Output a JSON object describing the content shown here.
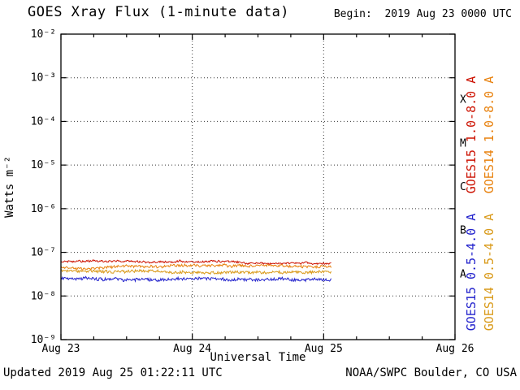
{
  "header": {
    "title": "GOES Xray Flux (1-minute data)",
    "begin_label": "Begin:  2019 Aug 23 0000 UTC"
  },
  "footer": {
    "updated": "Updated 2019 Aug 25 01:22:11 UTC",
    "source": "NOAA/SWPC Boulder, CO USA"
  },
  "chart_data": {
    "type": "line",
    "title": "GOES Xray Flux (1-minute data)",
    "xlabel": "Universal Time",
    "ylabel": "Watts m⁻²",
    "x_ticks": [
      "Aug 23",
      "Aug 24",
      "Aug 25",
      "Aug 26"
    ],
    "x_range_days": 3,
    "y_ticks": [
      "10⁻²",
      "10⁻³",
      "10⁻⁴",
      "10⁻⁵",
      "10⁻⁶",
      "10⁻⁷",
      "10⁻⁸",
      "10⁻⁹"
    ],
    "y_log_range": [
      -2,
      -9
    ],
    "grid": "dotted",
    "flare_classes": [
      {
        "label": "X",
        "log_center": -3.5
      },
      {
        "label": "M",
        "log_center": -4.5
      },
      {
        "label": "C",
        "log_center": -5.5
      },
      {
        "label": "B",
        "log_center": -6.5
      },
      {
        "label": "A",
        "log_center": -7.5
      }
    ],
    "series": [
      {
        "name": "GOES15 1.0-8.0 A",
        "color": "#cc1100",
        "base_flux": 6.2e-08,
        "start_day": 0,
        "end_day": 2.057,
        "noise_log": 0.02,
        "seed": 11
      },
      {
        "name": "GOES14 1.0-8.0 A",
        "color": "#e8820f",
        "base_flux": 4.5e-08,
        "start_day": 0,
        "end_day": 2.057,
        "noise_log": 0.03,
        "seed": 23
      },
      {
        "name": "GOES15 0.5-4.0 A",
        "color": "#2222cc",
        "base_flux": 2.6e-08,
        "start_day": 0,
        "end_day": 2.057,
        "noise_log": 0.035,
        "seed": 37
      },
      {
        "name": "GOES14 0.5-4.0 A",
        "color": "#d99a1a",
        "base_flux": 3.8e-08,
        "start_day": 0,
        "end_day": 2.057,
        "noise_log": 0.03,
        "seed": 51
      }
    ],
    "legend_right": [
      {
        "label": "GOES15 1.0-8.0 A",
        "color": "#cc1100",
        "column": 0,
        "row": 0
      },
      {
        "label": "GOES14 1.0-8.0 A",
        "color": "#e8820f",
        "column": 1,
        "row": 0
      },
      {
        "label": "GOES15 0.5-4.0 A",
        "color": "#2222cc",
        "column": 0,
        "row": 1
      },
      {
        "label": "GOES14 0.5-4.0 A",
        "color": "#d99a1a",
        "column": 1,
        "row": 1
      }
    ]
  }
}
